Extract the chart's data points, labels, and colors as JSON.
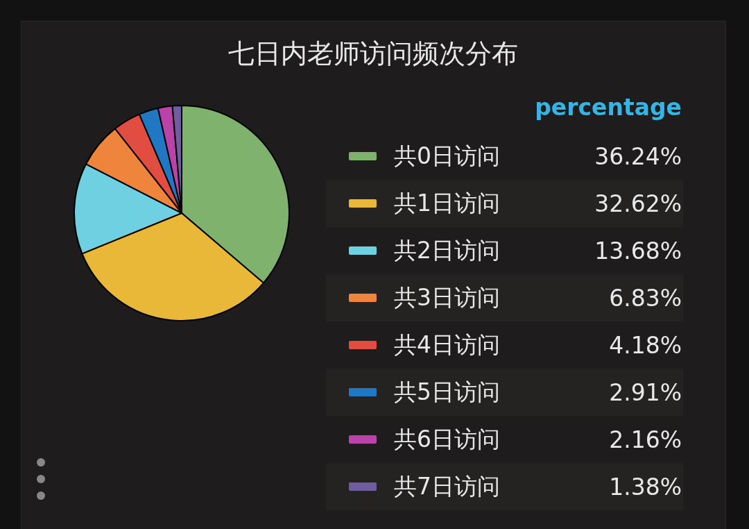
{
  "chart_data": {
    "type": "pie",
    "title": "七日内老师访问频次分布",
    "legend_title": "percentage",
    "legend": "right",
    "categories": [
      "共0日访问",
      "共1日访问",
      "共2日访问",
      "共3日访问",
      "共4日访问",
      "共5日访问",
      "共6日访问",
      "共7日访问"
    ],
    "values": [
      36.24,
      32.62,
      13.68,
      6.83,
      4.18,
      2.91,
      2.16,
      1.38
    ],
    "value_labels": [
      "36.24%",
      "32.62%",
      "13.68%",
      "6.83%",
      "4.18%",
      "2.91%",
      "2.16%",
      "1.38%"
    ],
    "colors": [
      "#7eb26d",
      "#eab839",
      "#6ed0e0",
      "#ef843c",
      "#e24d42",
      "#1f78c1",
      "#ba43a9",
      "#705da0"
    ]
  }
}
